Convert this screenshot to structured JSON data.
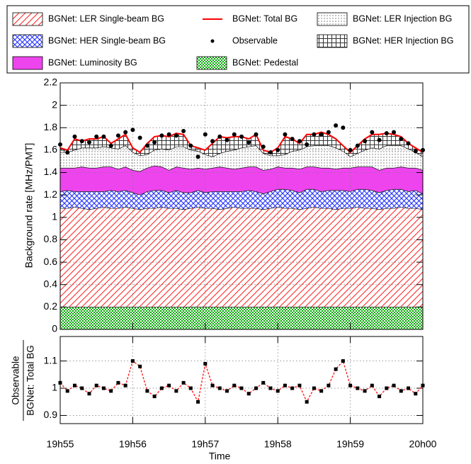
{
  "chart_data": [
    {
      "type": "area",
      "stacked": true,
      "x": [
        55,
        55.1,
        55.2,
        55.3,
        55.4,
        55.5,
        55.6,
        55.7,
        55.8,
        55.9,
        56,
        56.1,
        56.2,
        56.3,
        56.4,
        56.5,
        56.6,
        56.7,
        56.8,
        56.9,
        57,
        57.1,
        57.2,
        57.3,
        57.4,
        57.5,
        57.6,
        57.7,
        57.8,
        57.9,
        58,
        58.1,
        58.2,
        58.3,
        58.4,
        58.5,
        58.6,
        58.7,
        58.8,
        58.9,
        59,
        59.1,
        59.2,
        59.3,
        59.4,
        59.5,
        59.6,
        59.7,
        59.8,
        59.9,
        60
      ],
      "xlim": [
        55,
        60
      ],
      "ylabel": "Background rate [MHz/PMT]",
      "ylim": [
        0,
        2.2
      ],
      "yticks": [
        0,
        0.2,
        0.4,
        0.6,
        0.8,
        1,
        1.2,
        1.4,
        1.6,
        1.8,
        2,
        2.2
      ],
      "grid": true,
      "legend": "top",
      "series": [
        {
          "name": "BGNet: Pedestal",
          "color": "#00a800",
          "fill": "checker",
          "values": [
            0.2,
            0.2,
            0.2,
            0.2,
            0.2,
            0.2,
            0.2,
            0.2,
            0.2,
            0.2,
            0.2,
            0.2,
            0.2,
            0.2,
            0.2,
            0.2,
            0.2,
            0.2,
            0.2,
            0.2,
            0.2,
            0.2,
            0.2,
            0.2,
            0.2,
            0.2,
            0.2,
            0.2,
            0.2,
            0.2,
            0.2,
            0.2,
            0.2,
            0.2,
            0.2,
            0.2,
            0.2,
            0.2,
            0.2,
            0.2,
            0.2,
            0.2,
            0.2,
            0.2,
            0.2,
            0.2,
            0.2,
            0.2,
            0.2,
            0.2,
            0.2
          ]
        },
        {
          "name": "BGNet: LER Single-beam BG",
          "color": "#ff2020",
          "fill": "hatch",
          "values": [
            0.88,
            0.88,
            0.89,
            0.88,
            0.87,
            0.88,
            0.89,
            0.88,
            0.88,
            0.89,
            0.88,
            0.87,
            0.88,
            0.88,
            0.89,
            0.88,
            0.88,
            0.87,
            0.88,
            0.89,
            0.88,
            0.88,
            0.87,
            0.88,
            0.89,
            0.88,
            0.88,
            0.88,
            0.87,
            0.88,
            0.89,
            0.88,
            0.88,
            0.87,
            0.88,
            0.89,
            0.88,
            0.88,
            0.87,
            0.88,
            0.88,
            0.89,
            0.88,
            0.88,
            0.87,
            0.88,
            0.88,
            0.89,
            0.88,
            0.88,
            0.87
          ]
        },
        {
          "name": "BGNet: HER Single-beam BG",
          "color": "#2030ff",
          "fill": "cross",
          "values": [
            0.15,
            0.16,
            0.14,
            0.15,
            0.16,
            0.15,
            0.14,
            0.16,
            0.15,
            0.15,
            0.14,
            0.13,
            0.15,
            0.16,
            0.15,
            0.14,
            0.16,
            0.15,
            0.14,
            0.15,
            0.14,
            0.15,
            0.16,
            0.15,
            0.14,
            0.15,
            0.16,
            0.15,
            0.14,
            0.15,
            0.16,
            0.17,
            0.16,
            0.15,
            0.17,
            0.16,
            0.15,
            0.16,
            0.17,
            0.16,
            0.15,
            0.16,
            0.17,
            0.16,
            0.15,
            0.16,
            0.17,
            0.16,
            0.15,
            0.16,
            0.14
          ]
        },
        {
          "name": "BGNet: Luminosity BG",
          "color": "#ee44ee",
          "fill": "solid",
          "values": [
            0.21,
            0.2,
            0.21,
            0.22,
            0.21,
            0.21,
            0.22,
            0.21,
            0.2,
            0.21,
            0.2,
            0.21,
            0.21,
            0.22,
            0.21,
            0.2,
            0.21,
            0.22,
            0.21,
            0.2,
            0.21,
            0.21,
            0.22,
            0.21,
            0.2,
            0.21,
            0.21,
            0.22,
            0.21,
            0.2,
            0.2,
            0.19,
            0.2,
            0.21,
            0.2,
            0.2,
            0.21,
            0.2,
            0.19,
            0.2,
            0.21,
            0.2,
            0.2,
            0.21,
            0.2,
            0.2,
            0.19,
            0.2,
            0.21,
            0.2,
            0.21
          ]
        },
        {
          "name": "BGNet: LER Injection BG",
          "color": "#9a9a9a",
          "fill": "dots",
          "values": [
            0.14,
            0.14,
            0.16,
            0.17,
            0.18,
            0.18,
            0.18,
            0.17,
            0.18,
            0.19,
            0.16,
            0.14,
            0.12,
            0.14,
            0.16,
            0.18,
            0.18,
            0.19,
            0.17,
            0.15,
            0.13,
            0.1,
            0.12,
            0.15,
            0.17,
            0.18,
            0.18,
            0.19,
            0.15,
            0.12,
            0.1,
            0.12,
            0.15,
            0.17,
            0.18,
            0.19,
            0.2,
            0.2,
            0.19,
            0.15,
            0.1,
            0.12,
            0.15,
            0.17,
            0.19,
            0.2,
            0.2,
            0.19,
            0.17,
            0.14,
            0.12
          ]
        },
        {
          "name": "BGNet: HER Injection BG",
          "color": "#333333",
          "fill": "grid",
          "values": [
            0.04,
            0.02,
            0.1,
            0.06,
            0.08,
            0.08,
            0.09,
            0.04,
            0.09,
            0.1,
            0.04,
            0.03,
            0.1,
            0.12,
            0.12,
            0.12,
            0.12,
            0.11,
            0.04,
            0.03,
            0.04,
            0.12,
            0.15,
            0.12,
            0.12,
            0.1,
            0.07,
            0.1,
            0.03,
            0.03,
            0.07,
            0.16,
            0.11,
            0.06,
            0.11,
            0.1,
            0.12,
            0.1,
            0.08,
            0.05,
            0.04,
            0.07,
            0.1,
            0.12,
            0.13,
            0.11,
            0.1,
            0.08,
            0.05,
            0.04,
            0.04
          ]
        },
        {
          "name": "BGNet: Total BG",
          "color": "#ff0000",
          "type": "line",
          "values": [
            1.62,
            1.6,
            1.7,
            1.68,
            1.7,
            1.7,
            1.72,
            1.66,
            1.7,
            1.74,
            1.62,
            1.58,
            1.66,
            1.72,
            1.73,
            1.72,
            1.75,
            1.74,
            1.64,
            1.62,
            1.6,
            1.66,
            1.72,
            1.71,
            1.72,
            1.72,
            1.7,
            1.74,
            1.6,
            1.58,
            1.62,
            1.72,
            1.7,
            1.66,
            1.74,
            1.74,
            1.76,
            1.74,
            1.7,
            1.64,
            1.58,
            1.64,
            1.7,
            1.74,
            1.74,
            1.75,
            1.74,
            1.72,
            1.66,
            1.62,
            1.58
          ]
        },
        {
          "name": "Observable",
          "color": "#000000",
          "type": "scatter",
          "values": [
            1.65,
            1.58,
            1.72,
            1.68,
            1.67,
            1.72,
            1.72,
            1.64,
            1.73,
            1.76,
            1.78,
            1.71,
            1.64,
            1.67,
            1.73,
            1.74,
            1.73,
            1.77,
            1.64,
            1.54,
            1.74,
            1.68,
            1.72,
            1.69,
            1.74,
            1.72,
            1.67,
            1.74,
            1.63,
            1.58,
            1.6,
            1.74,
            1.7,
            1.68,
            1.65,
            1.74,
            1.74,
            1.76,
            1.82,
            1.8,
            1.6,
            1.64,
            1.68,
            1.76,
            1.69,
            1.75,
            1.76,
            1.7,
            1.66,
            1.59,
            1.6
          ]
        }
      ]
    },
    {
      "type": "line",
      "ylabel": [
        "Observable",
        "BGNet: Total BG"
      ],
      "xlabel": "Time",
      "xlim": [
        55,
        60
      ],
      "xticks": [
        {
          "value": 55,
          "label": "19h55"
        },
        {
          "value": 56,
          "label": "19h56"
        },
        {
          "value": 57,
          "label": "19h57"
        },
        {
          "value": 58,
          "label": "19h58"
        },
        {
          "value": 59,
          "label": "19h59"
        },
        {
          "value": 60,
          "label": "20h00"
        }
      ],
      "ylim": [
        0.87,
        1.19
      ],
      "yticks": [
        0.9,
        1,
        1.1
      ],
      "grid": true,
      "series": [
        {
          "color": "#ff2020",
          "marker_color": "#000000",
          "values": [
            1.02,
            0.99,
            1.01,
            1,
            0.98,
            1.01,
            1,
            0.99,
            1.02,
            1.01,
            1.1,
            1.08,
            0.99,
            0.97,
            1,
            1.01,
            0.99,
            1.02,
            1,
            0.95,
            1.09,
            1.01,
            1,
            0.99,
            1.01,
            1,
            0.98,
            1,
            1.02,
            1,
            0.99,
            1.01,
            1,
            1.01,
            0.95,
            1,
            0.99,
            1.01,
            1.07,
            1.1,
            1.01,
            1,
            0.99,
            1.01,
            0.97,
            1,
            1.01,
            0.99,
            1,
            0.98,
            1.01
          ]
        }
      ]
    }
  ]
}
